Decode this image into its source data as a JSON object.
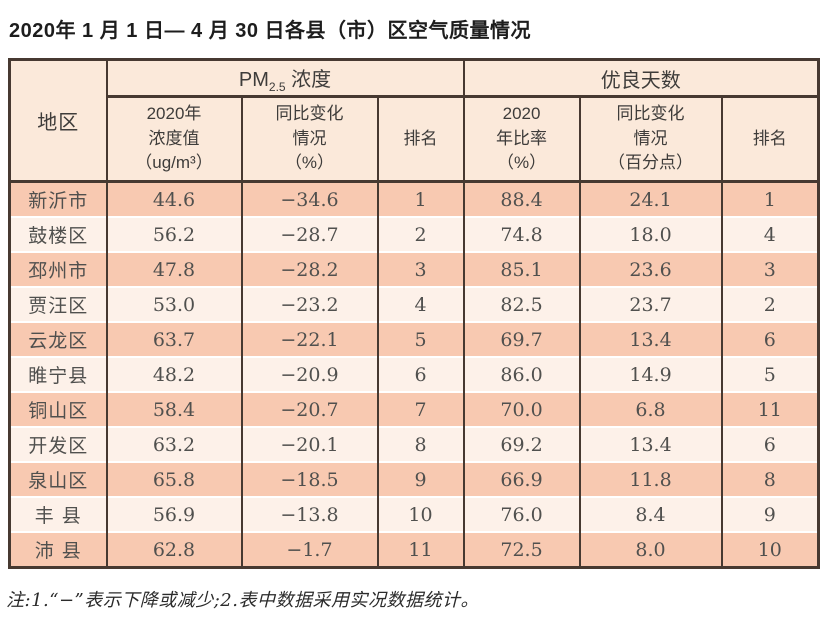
{
  "page": {
    "title": "2020年 1 月 1 日— 4 月 30 日各县（市）区空气质量情况",
    "note": "注:1.“−”表示下降或减少;2.表中数据采用实况数据统计。"
  },
  "colors": {
    "border": "#473931",
    "header_background": "#fbe9da",
    "row_odd": "#f8c9b1",
    "row_even": "#fdf1e9",
    "body_text": "#50504e"
  },
  "table": {
    "corner_header": "地区",
    "pm_group": {
      "prefix": "PM",
      "sub": "2.5",
      "suffix": " 浓度"
    },
    "good_days_group": "优良天数",
    "sub_headers": [
      "2020年\n浓度值\n（ug/m³）",
      "同比变化\n情况\n（%）",
      "排名",
      "2020\n年比率\n（%）",
      "同比变化\n情况\n（百分点）",
      "排名"
    ],
    "rows": [
      [
        "新沂市",
        "44.6",
        "−34.6",
        "1",
        "88.4",
        "24.1",
        "1"
      ],
      [
        "鼓楼区",
        "56.2",
        "−28.7",
        "2",
        "74.8",
        "18.0",
        "4"
      ],
      [
        "邳州市",
        "47.8",
        "−28.2",
        "3",
        "85.1",
        "23.6",
        "3"
      ],
      [
        "贾汪区",
        "53.0",
        "−23.2",
        "4",
        "82.5",
        "23.7",
        "2"
      ],
      [
        "云龙区",
        "63.7",
        "−22.1",
        "5",
        "69.7",
        "13.4",
        "6"
      ],
      [
        "睢宁县",
        "48.2",
        "−20.9",
        "6",
        "86.0",
        "14.9",
        "5"
      ],
      [
        "铜山区",
        "58.4",
        "−20.7",
        "7",
        "70.0",
        "6.8",
        "11"
      ],
      [
        "开发区",
        "63.2",
        "−20.1",
        "8",
        "69.2",
        "13.4",
        "6"
      ],
      [
        "泉山区",
        "65.8",
        "−18.5",
        "9",
        "66.9",
        "11.8",
        "8"
      ],
      [
        "丰 县",
        "56.9",
        "−13.8",
        "10",
        "76.0",
        "8.4",
        "9"
      ],
      [
        "沛 县",
        "62.8",
        "−1.7",
        "11",
        "72.5",
        "8.0",
        "10"
      ]
    ]
  },
  "chart_data": {
    "type": "table",
    "title": "2020年1月1日—4月30日各县（市）区空气质量情况",
    "column_groups": [
      {
        "label": "PM2.5浓度",
        "span_columns": [
          1,
          2,
          3
        ]
      },
      {
        "label": "优良天数",
        "span_columns": [
          4,
          5,
          6
        ]
      }
    ],
    "columns": [
      "地区",
      "2020年浓度值（ug/m³）",
      "同比变化情况（%）",
      "排名",
      "2020年比率（%）",
      "同比变化情况（百分点）",
      "排名"
    ],
    "rows": [
      [
        "新沂市",
        44.6,
        -34.6,
        1,
        88.4,
        24.1,
        1
      ],
      [
        "鼓楼区",
        56.2,
        -28.7,
        2,
        74.8,
        18.0,
        4
      ],
      [
        "邳州市",
        47.8,
        -28.2,
        3,
        85.1,
        23.6,
        3
      ],
      [
        "贾汪区",
        53.0,
        -23.2,
        4,
        82.5,
        23.7,
        2
      ],
      [
        "云龙区",
        63.7,
        -22.1,
        5,
        69.7,
        13.4,
        6
      ],
      [
        "睢宁县",
        48.2,
        -20.9,
        6,
        86.0,
        14.9,
        5
      ],
      [
        "铜山区",
        58.4,
        -20.7,
        7,
        70.0,
        6.8,
        11
      ],
      [
        "开发区",
        63.2,
        -20.1,
        8,
        69.2,
        13.4,
        6
      ],
      [
        "泉山区",
        65.8,
        -18.5,
        9,
        66.9,
        11.8,
        8
      ],
      [
        "丰县",
        56.9,
        -13.8,
        10,
        76.0,
        8.4,
        9
      ],
      [
        "沛县",
        62.8,
        -1.7,
        11,
        72.5,
        8.0,
        10
      ]
    ],
    "footnote": "注:1.“−”表示下降或减少;2.表中数据采用实况数据统计。"
  }
}
